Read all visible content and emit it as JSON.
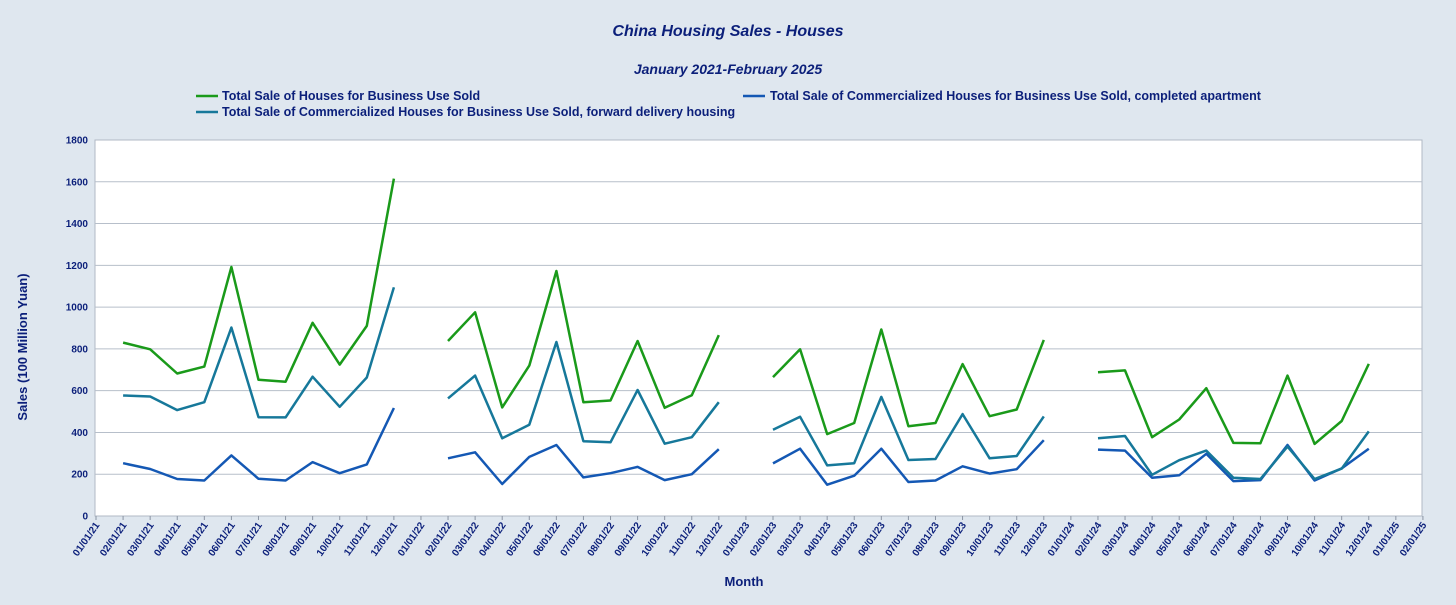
{
  "chart_data": {
    "type": "line",
    "title": "China Housing Sales - Houses",
    "subtitle": "January 2021-February 2025",
    "xlabel": "Month",
    "ylabel": "Sales (100 Million Yuan)",
    "ylim": [
      0,
      1800
    ],
    "yticks": [
      0,
      200,
      400,
      600,
      800,
      1000,
      1200,
      1400,
      1600,
      1800
    ],
    "grid": true,
    "legend_position": "top",
    "categories": [
      "01/01/21",
      "02/01/21",
      "03/01/21",
      "04/01/21",
      "05/01/21",
      "06/01/21",
      "07/01/21",
      "08/01/21",
      "09/01/21",
      "10/01/21",
      "11/01/21",
      "12/01/21",
      "01/01/22",
      "02/01/22",
      "03/01/22",
      "04/01/22",
      "05/01/22",
      "06/01/22",
      "07/01/22",
      "08/01/22",
      "09/01/22",
      "10/01/22",
      "11/01/22",
      "12/01/22",
      "01/01/23",
      "02/01/23",
      "03/01/23",
      "04/01/23",
      "05/01/23",
      "06/01/23",
      "07/01/23",
      "08/01/23",
      "09/01/23",
      "10/01/23",
      "11/01/23",
      "12/01/23",
      "01/01/24",
      "02/01/24",
      "03/01/24",
      "04/01/24",
      "05/01/24",
      "06/01/24",
      "07/01/24",
      "08/01/24",
      "09/01/24",
      "10/01/24",
      "11/01/24",
      "12/01/24",
      "01/01/25",
      "02/01/25"
    ],
    "series": [
      {
        "name": "Total Sale of Houses for Business Use Sold",
        "color": "#1a9a1a",
        "values": [
          null,
          830,
          798,
          682,
          715,
          1192,
          652,
          643,
          925,
          725,
          910,
          1615,
          null,
          838,
          975,
          520,
          720,
          1173,
          545,
          553,
          838,
          518,
          578,
          866,
          null,
          665,
          798,
          392,
          445,
          893,
          430,
          445,
          727,
          478,
          510,
          843,
          null,
          688,
          697,
          377,
          462,
          612,
          350,
          348,
          672,
          345,
          455,
          728,
          null,
          null
        ]
      },
      {
        "name": "Total Sale of Commercialized Houses for Business Use Sold, completed apartment",
        "color": "#1458b4",
        "values": [
          null,
          253,
          225,
          177,
          170,
          290,
          178,
          170,
          258,
          205,
          247,
          517,
          null,
          276,
          305,
          153,
          283,
          340,
          185,
          205,
          235,
          172,
          200,
          320,
          null,
          252,
          322,
          150,
          193,
          322,
          163,
          170,
          238,
          203,
          224,
          363,
          null,
          318,
          313,
          183,
          195,
          298,
          167,
          172,
          340,
          170,
          228,
          322,
          null,
          null
        ]
      },
      {
        "name": "Total Sale of Commercialized Houses for Business Use Sold, forward delivery housing",
        "color": "#16789a",
        "values": [
          null,
          577,
          572,
          507,
          545,
          902,
          473,
          472,
          667,
          523,
          663,
          1095,
          null,
          563,
          672,
          372,
          437,
          833,
          358,
          353,
          603,
          346,
          377,
          545,
          null,
          413,
          475,
          242,
          253,
          570,
          268,
          273,
          488,
          276,
          287,
          477,
          null,
          372,
          383,
          197,
          267,
          313,
          183,
          177,
          332,
          177,
          227,
          405,
          null,
          null
        ]
      }
    ]
  }
}
